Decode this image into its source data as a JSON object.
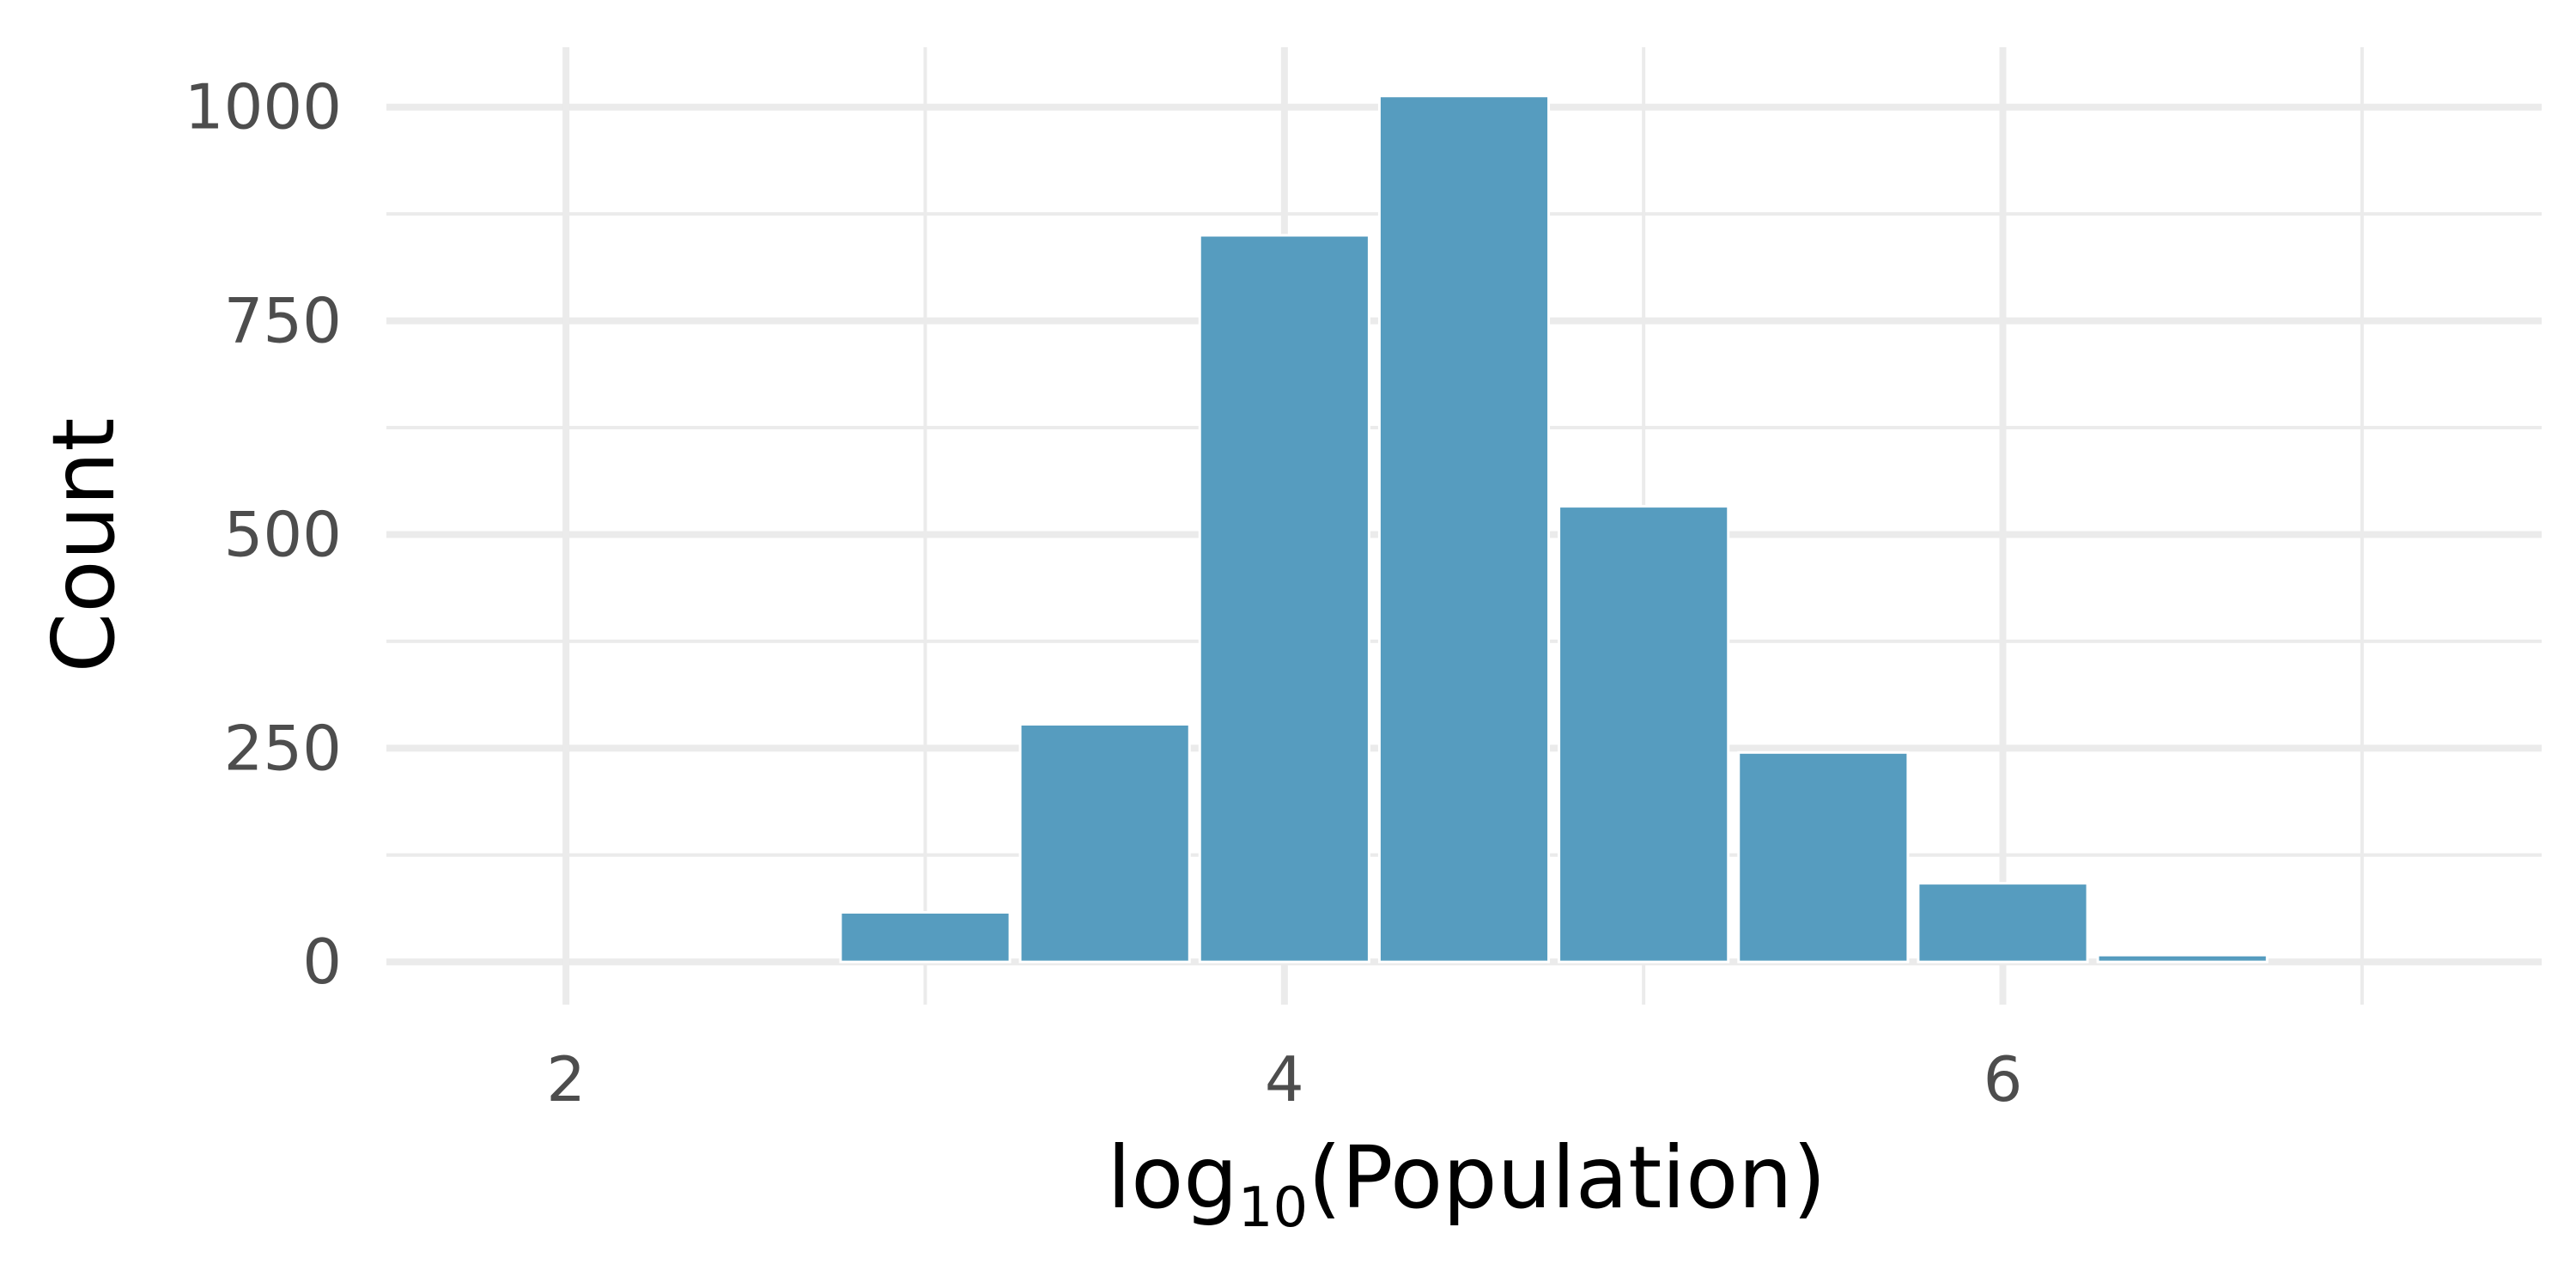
{
  "chart_data": {
    "type": "bar",
    "xlabel": {
      "main": "log",
      "sub": "10",
      "rest": "(Population)"
    },
    "ylabel": "Count",
    "bin_width": 0.5,
    "bins": [
      {
        "x_start": 2.75,
        "x_end": 3.25,
        "count": 58
      },
      {
        "x_start": 3.25,
        "x_end": 3.75,
        "count": 278
      },
      {
        "x_start": 3.75,
        "x_end": 4.25,
        "count": 850
      },
      {
        "x_start": 4.25,
        "x_end": 4.75,
        "count": 1013
      },
      {
        "x_start": 4.75,
        "x_end": 5.25,
        "count": 533
      },
      {
        "x_start": 5.25,
        "x_end": 5.75,
        "count": 245
      },
      {
        "x_start": 5.75,
        "x_end": 6.25,
        "count": 92
      },
      {
        "x_start": 6.25,
        "x_end": 6.75,
        "count": 8
      }
    ],
    "xlim": [
      1.5,
      7.5
    ],
    "ylim": [
      -50,
      1070
    ],
    "x_ticks": [
      "2",
      "4",
      "6"
    ],
    "x_tick_values": [
      2,
      4,
      6
    ],
    "x_minor_values": [
      3,
      5,
      7
    ],
    "y_ticks": [
      "0",
      "250",
      "500",
      "750",
      "1000"
    ],
    "y_tick_values": [
      0,
      250,
      500,
      750,
      1000
    ],
    "y_minor_values": [
      125,
      375,
      625,
      875
    ],
    "grid": true,
    "colors": {
      "bar": "#569cbf",
      "grid": "#ebebeb",
      "tick_text": "#4d4d4d"
    }
  }
}
